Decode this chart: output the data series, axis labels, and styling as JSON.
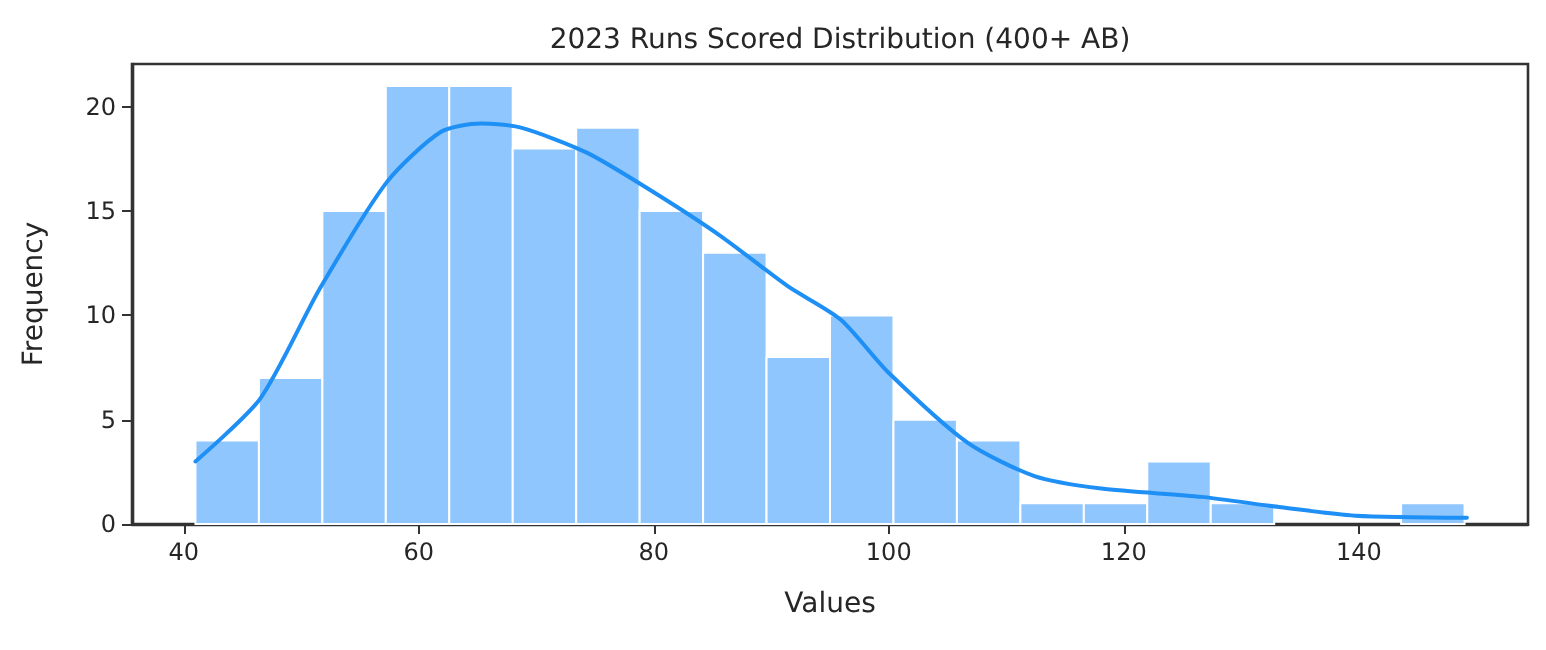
{
  "chart_data": {
    "type": "histogram",
    "title": "2023 Runs Scored Distribution (400+ AB)",
    "xlabel": "Values",
    "ylabel": "Frequency",
    "series": [
      {
        "color": "#8fc6fd",
        "bins": [
          41,
          46.4,
          51.8,
          57.2,
          62.6,
          68,
          73.4,
          78.8,
          84.2,
          89.6,
          95,
          100.4,
          105.8,
          111.2,
          116.6,
          122,
          127.4,
          132.8,
          138.2,
          143.6,
          149
        ],
        "values": [
          4,
          7,
          15,
          21,
          21,
          18,
          19,
          15,
          13,
          8,
          10,
          5,
          4,
          1,
          1,
          3,
          1,
          0,
          0,
          1
        ]
      },
      {
        "type": "line",
        "color": "#1e8ff5",
        "x": [
          41.0,
          46.5,
          51.6,
          57.3,
          61.9,
          65.3,
          68.7,
          74.3,
          80.0,
          85.7,
          91.4,
          95.9,
          99.9,
          106.7,
          112.4,
          118.1,
          126.6,
          133.4,
          139.7,
          149.2
        ],
        "values": [
          3.0,
          6.0,
          11.3,
          16.4,
          18.8,
          19.2,
          19.0,
          17.8,
          15.9,
          13.8,
          11.4,
          9.8,
          7.3,
          3.9,
          2.3,
          1.7,
          1.3,
          0.8,
          0.4,
          0.3
        ]
      }
    ],
    "xlim": [
      35.6,
      154.4
    ],
    "xticks": [
      40,
      60,
      80,
      100,
      120,
      140
    ],
    "ylim": [
      0,
      22.05
    ],
    "yticks": [
      0,
      5,
      10,
      15,
      20
    ],
    "grid": false
  }
}
